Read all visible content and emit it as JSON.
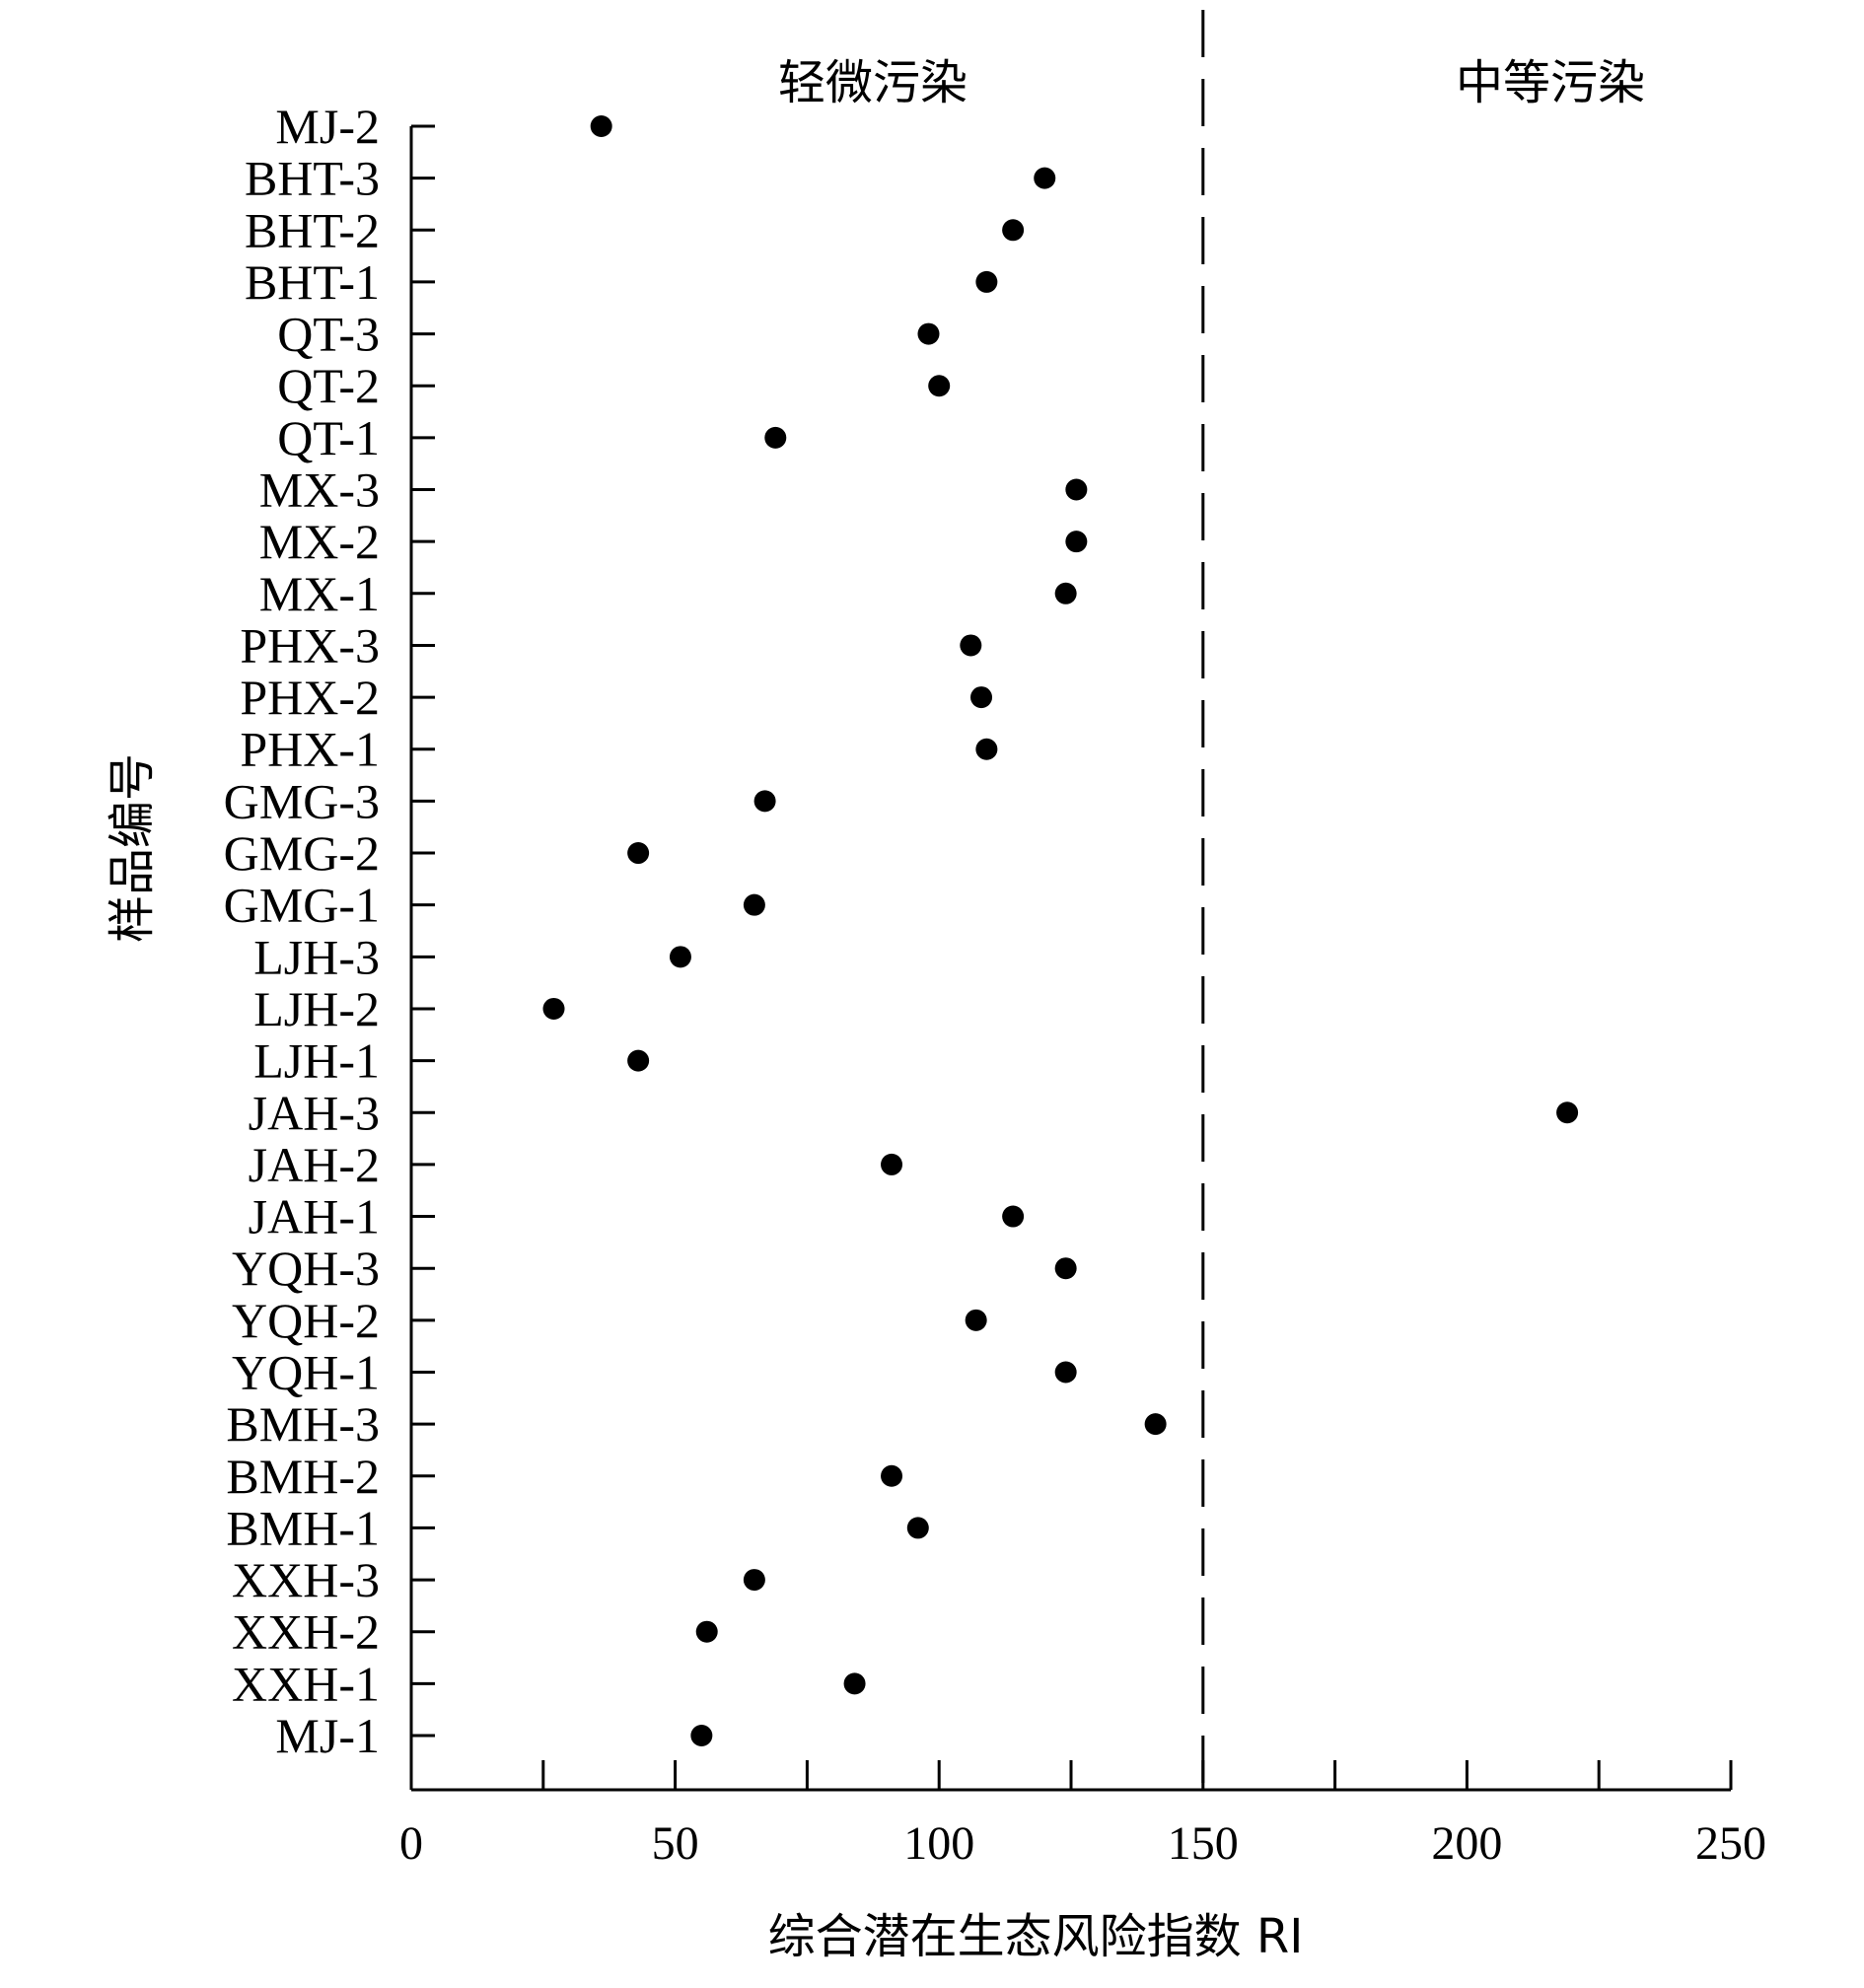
{
  "chart_data": {
    "type": "scatter",
    "xlabel": "综合潜在生态风险指数 RI",
    "ylabel": "样品编号",
    "xlim": [
      0,
      250
    ],
    "x_ticks": [
      0,
      50,
      100,
      150,
      200,
      250
    ],
    "x_tick_labels": [
      "0",
      "50",
      "100",
      "150",
      "200",
      "250"
    ],
    "grid": false,
    "threshold": {
      "x": 150,
      "style": "dashed"
    },
    "region_labels": [
      "轻微污染",
      "中等污染"
    ],
    "categories": [
      "MJ-1",
      "XXH-1",
      "XXH-2",
      "XXH-3",
      "BMH-1",
      "BMH-2",
      "BMH-3",
      "YQH-1",
      "YQH-2",
      "YQH-3",
      "JAH-1",
      "JAH-2",
      "JAH-3",
      "LJH-1",
      "LJH-2",
      "LJH-3",
      "GMG-1",
      "GMG-2",
      "GMG-3",
      "PHX-1",
      "PHX-2",
      "PHX-3",
      "MX-1",
      "MX-2",
      "MX-3",
      "QT-1",
      "QT-2",
      "QT-3",
      "BHT-1",
      "BHT-2",
      "BHT-3",
      "MJ-2"
    ],
    "values": [
      55,
      84,
      56,
      65,
      96,
      91,
      141,
      124,
      107,
      124,
      114,
      91,
      219,
      43,
      27,
      51,
      65,
      43,
      67,
      109,
      108,
      106,
      124,
      126,
      126,
      69,
      100,
      98,
      109,
      114,
      120,
      36
    ],
    "marker_color": "#000000"
  }
}
